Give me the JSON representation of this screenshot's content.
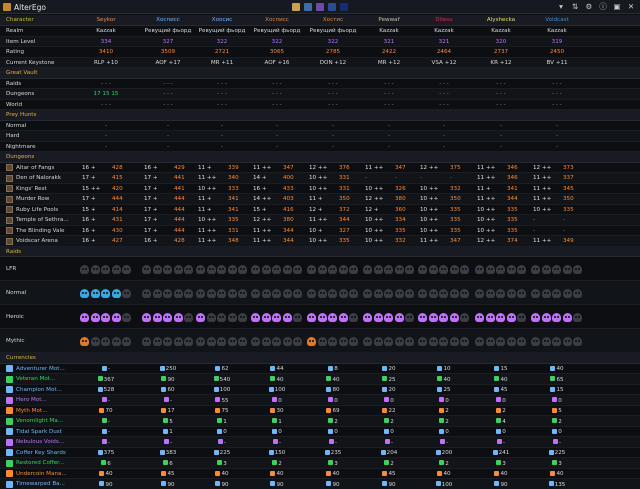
{
  "app": {
    "title": "AlterEgo"
  },
  "colors": {
    "accent": "#e0b23c",
    "green": "#3ed25c",
    "blue": "#6fb6ff",
    "purple": "#c070ff",
    "orange": "#ff8a30"
  },
  "headers": {
    "character": "Character",
    "realm": "Realm",
    "item_level": "Item Level",
    "rating": "Rating",
    "keystone": "Current Keystone",
    "vault": "Great Vault",
    "raids": "Raids",
    "dungeons": "Dungeons",
    "world": "World",
    "prey": "Prey Hunts",
    "normal": "Normal",
    "hard": "Hard",
    "nightmare": "Nightmare",
    "dungeons_section": "Dungeons",
    "raids_section": "Raids",
    "lfr": "LFR",
    "raid_normal": "Normal",
    "heroic": "Heroic",
    "mythic": "Mythic",
    "currencies": "Currencies"
  },
  "characters": [
    {
      "name": "Seykor",
      "color": "#ff8a30",
      "realm": "Kazzak",
      "ilvl": "334",
      "rating": "3410",
      "key": "RLP +10",
      "raids": "- - -",
      "dungeons": "17 15 15",
      "world": "- - -",
      "prey_n": "-",
      "prey_h": "-",
      "prey_nm": "-"
    },
    {
      "name": "Хосписс",
      "color": "#6fb6ff",
      "realm": "Ревущий фьорд",
      "ilvl": "327",
      "rating": "3509",
      "key": "AOF +17",
      "raids": "- - -",
      "dungeons": "- - -",
      "world": "- - -",
      "prey_n": "-",
      "prey_h": "-",
      "prey_nm": "-"
    },
    {
      "name": "Хоосис",
      "color": "#6fb6ff",
      "realm": "Ревущий фьорд",
      "ilvl": "322",
      "rating": "2721",
      "key": "MR +11",
      "raids": "- - -",
      "dungeons": "- - -",
      "world": "- - -",
      "prey_n": "-",
      "prey_h": "-",
      "prey_nm": "-"
    },
    {
      "name": "Хосписс",
      "color": "#d88a4a",
      "realm": "Ревущий фьорд",
      "ilvl": "322",
      "rating": "3065",
      "key": "AOF +16",
      "raids": "- - -",
      "dungeons": "- - -",
      "world": "- - -",
      "prey_n": "-",
      "prey_h": "-",
      "prey_nm": "-"
    },
    {
      "name": "Хостис",
      "color": "#d88a4a",
      "realm": "Ревущий фьорд",
      "ilvl": "322",
      "rating": "2785",
      "key": "DON +12",
      "raids": "- - -",
      "dungeons": "- - -",
      "world": "- - -",
      "prey_n": "-",
      "prey_h": "-",
      "prey_nm": "-"
    },
    {
      "name": "Pewwaf",
      "color": "#c9c0a0",
      "realm": "Kazzak",
      "ilvl": "321",
      "rating": "2422",
      "key": "MR +12",
      "raids": "- - -",
      "dungeons": "- - -",
      "world": "- - -",
      "prey_n": "-",
      "prey_h": "-",
      "prey_nm": "-"
    },
    {
      "name": "Dilesu",
      "color": "#e0303a",
      "realm": "Kazzak",
      "ilvl": "321",
      "rating": "2464",
      "key": "VSA +12",
      "raids": "- - -",
      "dungeons": "- - -",
      "world": "- - -",
      "prey_n": "-",
      "prey_h": "-",
      "prey_nm": "-"
    },
    {
      "name": "Alyshecka",
      "color": "#e0e060",
      "realm": "Kazzak",
      "ilvl": "320",
      "rating": "2737",
      "key": "KR +12",
      "raids": "- - -",
      "dungeons": "- - -",
      "world": "- - -",
      "prey_n": "-",
      "prey_h": "-",
      "prey_nm": "-"
    },
    {
      "name": "Voidcast",
      "color": "#3a8ce0",
      "realm": "Kazzak",
      "ilvl": "319",
      "rating": "2450",
      "key": "BV +11",
      "raids": "- - -",
      "dungeons": "- - -",
      "world": "- - -",
      "prey_n": "-",
      "prey_h": "-",
      "prey_nm": "-"
    }
  ],
  "dungeons": [
    {
      "name": "Altar of Fangs",
      "runs": [
        [
          "16 +",
          "428"
        ],
        [
          "16 +",
          "429"
        ],
        [
          "11 +",
          "339"
        ],
        [
          "11 ++",
          "347"
        ],
        [
          "12 ++",
          "376"
        ],
        [
          "11 ++",
          "347"
        ],
        [
          "12 ++",
          "375"
        ],
        [
          "11 ++",
          "346"
        ],
        [
          "12 ++",
          "373"
        ]
      ]
    },
    {
      "name": "Den of Nalorakk",
      "runs": [
        [
          "17 +",
          "415"
        ],
        [
          "17 +",
          "441"
        ],
        [
          "11 ++",
          "340"
        ],
        [
          "14 +",
          "400"
        ],
        [
          "10 ++",
          "331"
        ],
        [
          "-",
          "-"
        ],
        [
          "-",
          "-"
        ],
        [
          "11 ++",
          "346"
        ],
        [
          "11 ++",
          "337"
        ]
      ]
    },
    {
      "name": "Kings' Rest",
      "runs": [
        [
          "15 ++",
          "420"
        ],
        [
          "17 +",
          "441"
        ],
        [
          "10 ++",
          "333"
        ],
        [
          "16 +",
          "433"
        ],
        [
          "10 ++",
          "331"
        ],
        [
          "10 ++",
          "326"
        ],
        [
          "10 ++",
          "332"
        ],
        [
          "11 +",
          "341"
        ],
        [
          "11 ++",
          "345"
        ]
      ]
    },
    {
      "name": "Murder Row",
      "runs": [
        [
          "17 +",
          "444"
        ],
        [
          "17 +",
          "444"
        ],
        [
          "11 +",
          "341"
        ],
        [
          "14 ++",
          "403"
        ],
        [
          "11 +",
          "350"
        ],
        [
          "12 ++",
          "380"
        ],
        [
          "10 ++",
          "350"
        ],
        [
          "11 ++",
          "344"
        ],
        [
          "11 ++",
          "350"
        ]
      ]
    },
    {
      "name": "Ruby Life Pools",
      "runs": [
        [
          "15 +",
          "414"
        ],
        [
          "17 +",
          "444"
        ],
        [
          "11 +",
          "341"
        ],
        [
          "15 +",
          "416"
        ],
        [
          "12 +",
          "372"
        ],
        [
          "12 +",
          "360"
        ],
        [
          "10 ++",
          "335"
        ],
        [
          "10 ++",
          "335"
        ],
        [
          "10 ++",
          "335"
        ]
      ]
    },
    {
      "name": "Temple of Sethra...",
      "runs": [
        [
          "16 +",
          "431"
        ],
        [
          "17 +",
          "444"
        ],
        [
          "10 ++",
          "335"
        ],
        [
          "12 ++",
          "380"
        ],
        [
          "11 ++",
          "344"
        ],
        [
          "10 ++",
          "334"
        ],
        [
          "10 ++",
          "335"
        ],
        [
          "10 ++",
          "335"
        ],
        [
          "-",
          "-"
        ]
      ]
    },
    {
      "name": "The Blinding Vale",
      "runs": [
        [
          "16 +",
          "430"
        ],
        [
          "17 +",
          "444"
        ],
        [
          "11 ++",
          "331"
        ],
        [
          "11 ++",
          "344"
        ],
        [
          "10 +",
          "327"
        ],
        [
          "10 ++",
          "335"
        ],
        [
          "10 ++",
          "335"
        ],
        [
          "10 ++",
          "335"
        ],
        [
          "-",
          "-"
        ]
      ]
    },
    {
      "name": "Voidscar Arena",
      "runs": [
        [
          "16 +",
          "427"
        ],
        [
          "16 +",
          "428"
        ],
        [
          "11 ++",
          "348"
        ],
        [
          "11 ++",
          "344"
        ],
        [
          "10 ++",
          "335"
        ],
        [
          "10 ++",
          "332"
        ],
        [
          "11 ++",
          "347"
        ],
        [
          "12 ++",
          "374"
        ],
        [
          "11 ++",
          "349"
        ]
      ]
    }
  ],
  "raid_rows": {
    "lfr": {
      "fills": [
        0,
        0,
        0,
        0,
        0,
        0,
        0,
        0,
        0
      ]
    },
    "normal": {
      "fills": [
        4,
        0,
        0,
        0,
        0,
        0,
        0,
        0,
        0
      ]
    },
    "heroic": {
      "fills": [
        4,
        4,
        1,
        4,
        4,
        4,
        4,
        4,
        4
      ]
    },
    "mythic": {
      "fills": [
        1,
        0,
        0,
        0,
        1,
        0,
        0,
        0,
        0
      ]
    }
  },
  "currencies": [
    {
      "name": "Adventurer Mot...",
      "color": "#6fb6ff",
      "values": [
        "-",
        "250",
        "62",
        "44",
        "8",
        "20",
        "10",
        "15",
        "40"
      ]
    },
    {
      "name": "Veteran Mot...",
      "color": "#3ed25c",
      "values": [
        "367",
        "90",
        "540",
        "40",
        "40",
        "25",
        "40",
        "40",
        "65"
      ]
    },
    {
      "name": "Champion Mot...",
      "color": "#6fb6ff",
      "values": [
        "528",
        "60",
        "100",
        "100",
        "80",
        "20",
        "25",
        "45",
        "15"
      ]
    },
    {
      "name": "Hero Mot...",
      "color": "#c070ff",
      "values": [
        "-",
        "-",
        "55",
        "0",
        "0",
        "0",
        "0",
        "0",
        "0"
      ]
    },
    {
      "name": "Myth Mot...",
      "color": "#ff8a30",
      "values": [
        "70",
        "17",
        "75",
        "30",
        "69",
        "22",
        "2",
        "2",
        "5"
      ]
    },
    {
      "name": "Venomlight Ma...",
      "color": "#3ed25c",
      "values": [
        "-",
        "5",
        "1",
        "1",
        "2",
        "2",
        "2",
        "4",
        "2"
      ]
    },
    {
      "name": "Tidal Spark Dust",
      "color": "#6fb6ff",
      "values": [
        "-",
        "1",
        "0",
        "0",
        "0",
        "0",
        "0",
        "0",
        "0"
      ]
    },
    {
      "name": "Nebulous Voids...",
      "color": "#c070ff",
      "values": [
        "-",
        "-",
        "-",
        "-",
        "-",
        "-",
        "-",
        "-",
        "-"
      ]
    },
    {
      "name": "Coffer Key Shards",
      "color": "#6fb6ff",
      "values": [
        "375",
        "383",
        "225",
        "150",
        "235",
        "204",
        "200",
        "241",
        "225"
      ]
    },
    {
      "name": "Restored Coffer...",
      "color": "#3ed25c",
      "values": [
        "6",
        "6",
        "3",
        "2",
        "3",
        "2",
        "2",
        "3",
        "3"
      ]
    },
    {
      "name": "Undercoin Mana...",
      "color": "#ff8a30",
      "values": [
        "40",
        "45",
        "40",
        "40",
        "40",
        "45",
        "40",
        "40",
        "40"
      ]
    },
    {
      "name": "Timewarped Ba...",
      "color": "#6fb6ff",
      "values": [
        "90",
        "90",
        "90",
        "90",
        "90",
        "90",
        "100",
        "90",
        "135"
      ]
    }
  ]
}
